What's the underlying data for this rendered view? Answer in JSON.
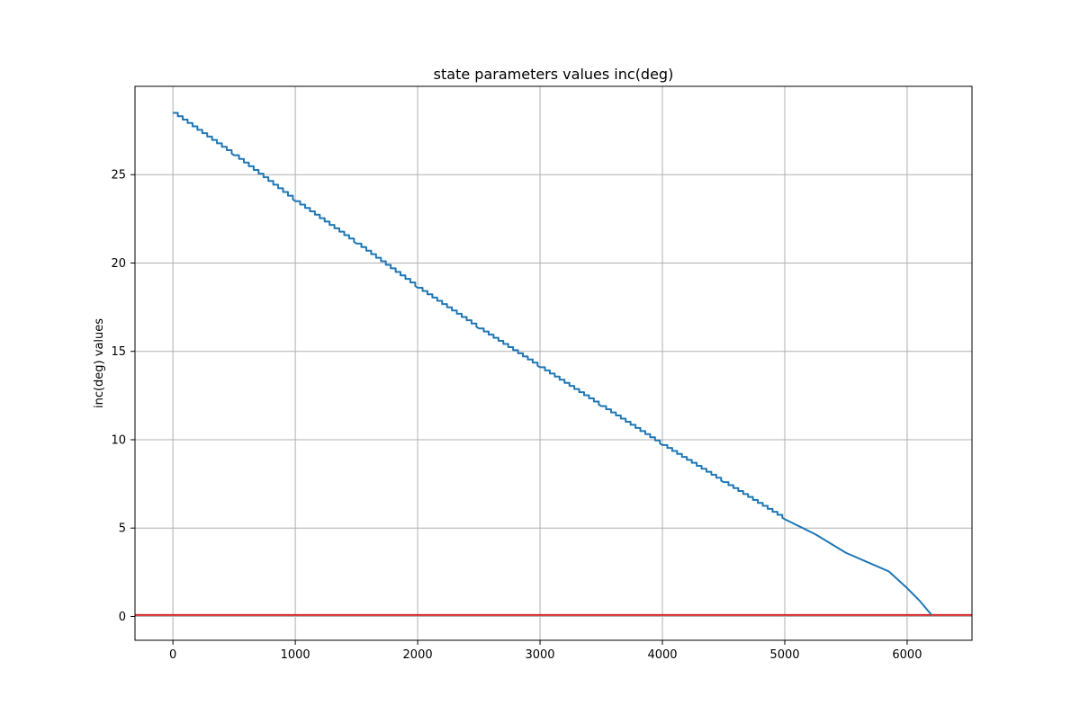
{
  "chart_data": {
    "type": "line",
    "title": "state parameters values inc(deg)",
    "xlabel": "",
    "ylabel": "inc(deg) values",
    "xlim": [
      -310,
      6530
    ],
    "ylim": [
      -1.35,
      30.0
    ],
    "grid": true,
    "x_ticks": [
      0,
      1000,
      2000,
      3000,
      4000,
      5000,
      6000
    ],
    "y_ticks": [
      0,
      5,
      10,
      15,
      20,
      25
    ],
    "series": [
      {
        "color": "#1f77b4",
        "style": "stepped-line",
        "points": [
          [
            0,
            28.5
          ],
          [
            500,
            26.1
          ],
          [
            1000,
            23.5
          ],
          [
            1500,
            21.1
          ],
          [
            2000,
            18.6
          ],
          [
            2500,
            16.3
          ],
          [
            3000,
            14.1
          ],
          [
            3500,
            11.9
          ],
          [
            4000,
            9.7
          ],
          [
            4500,
            7.6
          ],
          [
            5000,
            5.5
          ],
          [
            5250,
            4.65
          ],
          [
            5500,
            3.6
          ],
          [
            5700,
            3.0
          ],
          [
            5850,
            2.55
          ],
          [
            6000,
            1.6
          ],
          [
            6100,
            0.9
          ],
          [
            6200,
            0.08
          ]
        ]
      }
    ],
    "reference_lines": [
      {
        "axis": "y",
        "value": 0.08,
        "color": "#d62728"
      }
    ]
  }
}
